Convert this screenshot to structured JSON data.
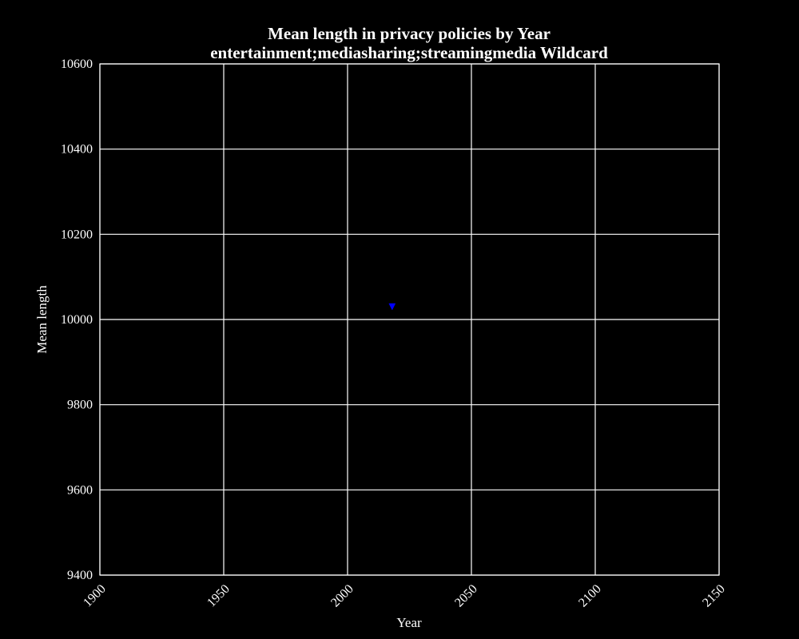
{
  "chart_data": {
    "type": "scatter",
    "title": "Mean length in privacy policies by Year",
    "subtitle": "entertainment;mediasharing;streamingmedia Wildcard",
    "xlabel": "Year",
    "ylabel": "Mean length",
    "xlim": [
      1900,
      2150
    ],
    "ylim": [
      9400,
      10600
    ],
    "xticks": [
      1900,
      1950,
      2000,
      2050,
      2100,
      2150
    ],
    "yticks": [
      9400,
      9600,
      9800,
      10000,
      10200,
      10400,
      10600
    ],
    "grid": true,
    "series": [
      {
        "marker": "triangle-down",
        "color": "#0000ff",
        "points": [
          {
            "x": 2018,
            "y": 10030
          }
        ]
      }
    ]
  },
  "colors": {
    "background": "#000000",
    "foreground": "#ffffff",
    "marker": "#0000ff"
  }
}
